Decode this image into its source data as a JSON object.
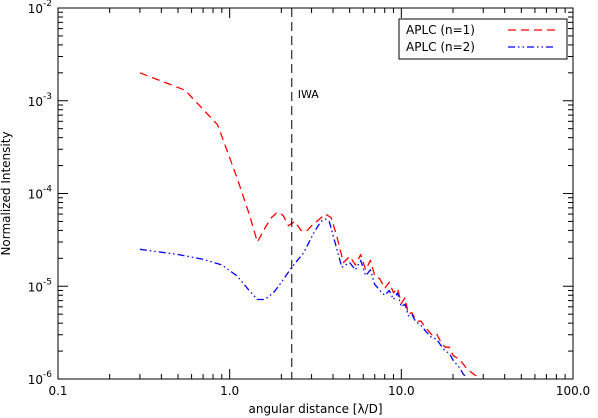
{
  "chart_data": {
    "type": "line",
    "xlabel": "angular distance [λ/D]",
    "ylabel": "Normalized Intensity",
    "xscale": "log",
    "yscale": "log",
    "xlim": [
      0.1,
      100.0
    ],
    "ylim": [
      1e-06,
      0.01
    ],
    "x_ticks": [
      {
        "value": 0.1,
        "label": "0.1"
      },
      {
        "value": 1.0,
        "label": "1.0"
      },
      {
        "value": 10.0,
        "label": "10.0"
      },
      {
        "value": 100.0,
        "label": "100.0"
      }
    ],
    "y_ticks": [
      {
        "value": 1e-06,
        "mant": "10",
        "exp": "-6"
      },
      {
        "value": 1e-05,
        "mant": "10",
        "exp": "-5"
      },
      {
        "value": 0.0001,
        "mant": "10",
        "exp": "-4"
      },
      {
        "value": 0.001,
        "mant": "10",
        "exp": "-3"
      },
      {
        "value": 0.01,
        "mant": "10",
        "exp": "-2"
      }
    ],
    "legend_position": "top-right",
    "vline": {
      "x": 2.3,
      "label": "IWA"
    },
    "series": [
      {
        "name": "APLC (n=1)",
        "color": "#ff0000",
        "style": "dashed",
        "x": [
          0.3,
          0.55,
          0.85,
          1.1,
          1.3,
          1.45,
          1.6,
          1.75,
          1.9,
          2.05,
          2.2,
          2.4,
          2.6,
          2.8,
          3.0,
          3.3,
          3.6,
          3.9,
          4.2,
          4.6,
          5.0,
          5.4,
          5.8,
          6.2,
          6.6,
          7.0,
          7.5,
          8.0,
          8.5,
          9.0,
          9.5,
          10.0,
          10.5,
          11.0,
          11.5,
          12.0,
          12.5,
          13.0,
          14.0,
          15.0,
          16.0,
          17.0,
          18.0,
          19.0,
          20.0,
          22.0,
          24.0,
          26.0,
          28.0,
          30.0
        ],
        "y": [
          0.002,
          0.0013,
          0.00055,
          0.00015,
          6e-05,
          3e-05,
          4.2e-05,
          5.5e-05,
          6.3e-05,
          5.8e-05,
          4.5e-05,
          5e-05,
          4e-05,
          3.9e-05,
          4.5e-05,
          5.2e-05,
          6e-05,
          5.5e-05,
          3.5e-05,
          1.8e-05,
          2.1e-05,
          1.7e-05,
          2.2e-05,
          1.5e-05,
          1.9e-05,
          1.3e-05,
          1.2e-05,
          9.5e-06,
          1.1e-05,
          8.5e-06,
          9.5e-06,
          6.5e-06,
          7.5e-06,
          5e-06,
          5.2e-06,
          4.5e-06,
          4.2e-06,
          4.2e-06,
          3.5e-06,
          3e-06,
          3.1e-06,
          2.5e-06,
          2.2e-06,
          2.2e-06,
          1.8e-06,
          1.6e-06,
          1.3e-06,
          1.15e-06,
          1.05e-06,
          9.5e-07
        ]
      },
      {
        "name": "APLC (n=2)",
        "color": "#0000ff",
        "style": "dash-dot-dot",
        "x": [
          0.3,
          0.5,
          0.7,
          0.9,
          1.1,
          1.3,
          1.45,
          1.6,
          1.8,
          2.0,
          2.3,
          2.7,
          3.1,
          3.4,
          3.6,
          3.8,
          4.1,
          4.5,
          5.0,
          5.4,
          5.8,
          6.2,
          6.6,
          7.0,
          7.5,
          8.0,
          8.5,
          9.0,
          9.5,
          10.0,
          10.5,
          11.0,
          11.5,
          12.0,
          12.5,
          13.0,
          14.0,
          15.0,
          16.0,
          17.0,
          18.0,
          19.0,
          20.0,
          22.0,
          23.0,
          24.0
        ],
        "y": [
          2.5e-05,
          2.2e-05,
          1.95e-05,
          1.7e-05,
          1.3e-05,
          9e-06,
          7.2e-06,
          7.2e-06,
          8.5e-06,
          1.1e-05,
          1.6e-05,
          2.3e-05,
          3.8e-05,
          5e-05,
          5.3e-05,
          5e-05,
          3e-05,
          1.6e-05,
          1.8e-05,
          1.5e-05,
          1.9e-05,
          1.3e-05,
          1.5e-05,
          1.05e-05,
          9e-06,
          8e-06,
          9e-06,
          7.2e-06,
          8.5e-06,
          6e-06,
          6.4e-06,
          4.8e-06,
          5e-06,
          4.3e-06,
          4e-06,
          3.8e-06,
          3.2e-06,
          2.8e-06,
          2.7e-06,
          2.3e-06,
          2e-06,
          1.9e-06,
          1.6e-06,
          1.3e-06,
          1.12e-06,
          1.05e-06
        ]
      }
    ]
  }
}
